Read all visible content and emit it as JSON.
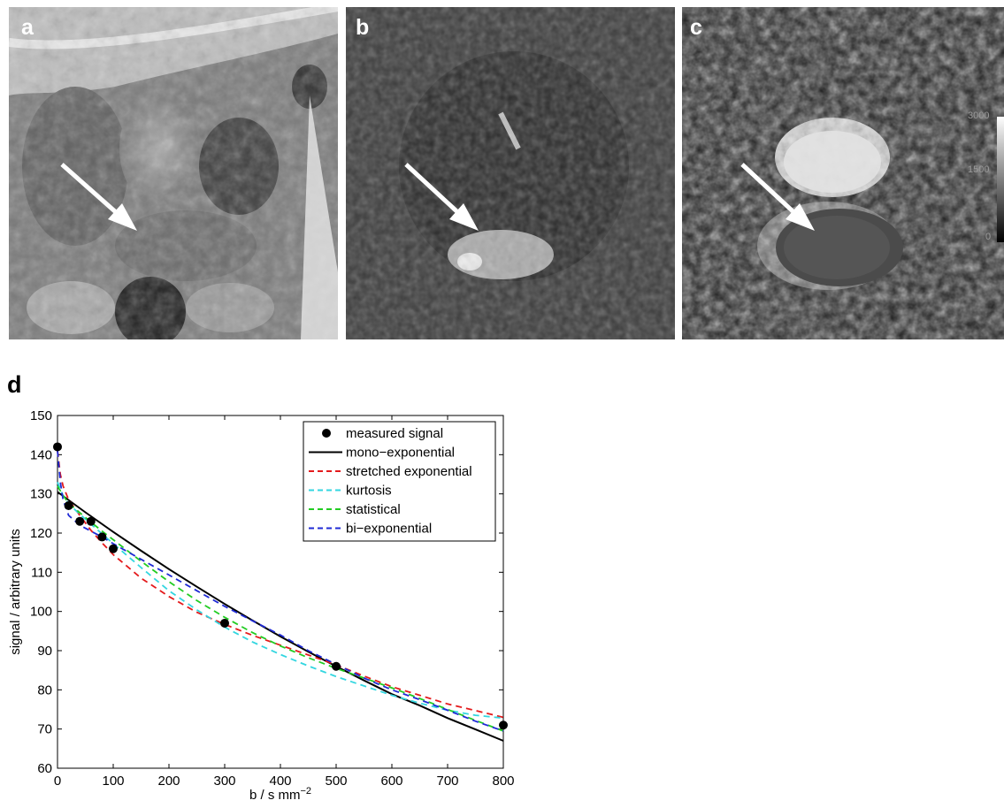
{
  "figure": {
    "panels": [
      {
        "letter": "a",
        "kind": "mri-anatomical-image"
      },
      {
        "letter": "b",
        "kind": "mri-diffusion-image"
      },
      {
        "letter": "c",
        "kind": "mri-adc-map"
      }
    ],
    "panel_d_letter": "d",
    "colorbar": {
      "ticks": [
        "3000",
        "1500",
        "0"
      ]
    }
  },
  "chart_data": {
    "type": "line",
    "xlabel": "b / s mm",
    "xlabel_sup": "−2",
    "ylabel": "signal / arbitrary units",
    "xlim": [
      0,
      800
    ],
    "ylim": [
      60,
      150
    ],
    "xticks": [
      0,
      100,
      200,
      300,
      400,
      500,
      600,
      700,
      800
    ],
    "yticks": [
      60,
      70,
      80,
      90,
      100,
      110,
      120,
      130,
      140,
      150
    ],
    "grid": false,
    "legend_position": "top-right",
    "measured": {
      "name": "measured signal",
      "color": "#000000",
      "x": [
        0,
        20,
        40,
        60,
        80,
        100,
        300,
        500,
        800
      ],
      "y": [
        142,
        127,
        123,
        123,
        119,
        116,
        97,
        86,
        71
      ]
    },
    "series": [
      {
        "name": "mono−exponential",
        "color": "#000000",
        "dash": "solid",
        "x": [
          0,
          50,
          100,
          150,
          200,
          250,
          300,
          350,
          400,
          450,
          500,
          550,
          600,
          650,
          700,
          750,
          800
        ],
        "y": [
          130.5,
          125.3,
          120.3,
          115.5,
          110.8,
          106.3,
          101.9,
          97.7,
          93.6,
          89.7,
          86.0,
          82.4,
          78.9,
          76.0,
          72.8,
          69.9,
          67.0
        ]
      },
      {
        "name": "stretched exponential",
        "color": "#e41a1c",
        "dash": "dashed",
        "x": [
          0,
          5,
          10,
          20,
          40,
          60,
          80,
          100,
          150,
          200,
          250,
          300,
          350,
          400,
          450,
          500,
          550,
          600,
          650,
          700,
          750,
          800
        ],
        "y": [
          141,
          135,
          132,
          128.5,
          124.5,
          120.7,
          117.5,
          114.5,
          108.5,
          103.8,
          99.8,
          96.7,
          93.9,
          91.4,
          88.9,
          86.4,
          83.5,
          80.8,
          78.6,
          76.4,
          74.7,
          73.0
        ]
      },
      {
        "name": "kurtosis",
        "color": "#33d6e0",
        "dash": "dashed",
        "x": [
          0,
          10,
          20,
          40,
          60,
          80,
          100,
          150,
          200,
          250,
          300,
          350,
          400,
          450,
          500,
          550,
          600,
          650,
          700,
          750,
          800
        ],
        "y": [
          133,
          129.5,
          127.5,
          124.8,
          122.3,
          119.8,
          117.3,
          111.2,
          105.3,
          100.4,
          96.0,
          92.2,
          89.0,
          86.1,
          83.4,
          81.0,
          78.6,
          76.6,
          74.8,
          73.5,
          72.8
        ]
      },
      {
        "name": "statistical",
        "color": "#22cc22",
        "dash": "dashed",
        "x": [
          0,
          10,
          20,
          40,
          60,
          80,
          100,
          150,
          200,
          250,
          300,
          350,
          400,
          450,
          500,
          550,
          600,
          650,
          700,
          750,
          800
        ],
        "y": [
          132,
          129.6,
          127.6,
          125.2,
          122.8,
          120.5,
          118.3,
          112.8,
          107.6,
          102.8,
          98.5,
          94.6,
          91.2,
          88.2,
          85.5,
          83.0,
          80.5,
          77.8,
          75.0,
          72.2,
          69.5
        ]
      },
      {
        "name": "bi−exponential",
        "color": "#1f2ad6",
        "dash": "dashed",
        "x": [
          0,
          5,
          10,
          20,
          40,
          60,
          80,
          100,
          150,
          200,
          250,
          300,
          350,
          400,
          450,
          500,
          550,
          600,
          650,
          700,
          750,
          800
        ],
        "y": [
          141,
          133,
          128.5,
          124.5,
          122,
          120.5,
          119.0,
          117.3,
          113.3,
          109.3,
          105.3,
          101.3,
          97.6,
          94.0,
          90.0,
          86.5,
          83.0,
          80.0,
          77.5,
          74.8,
          72.0,
          69.5
        ]
      }
    ]
  }
}
